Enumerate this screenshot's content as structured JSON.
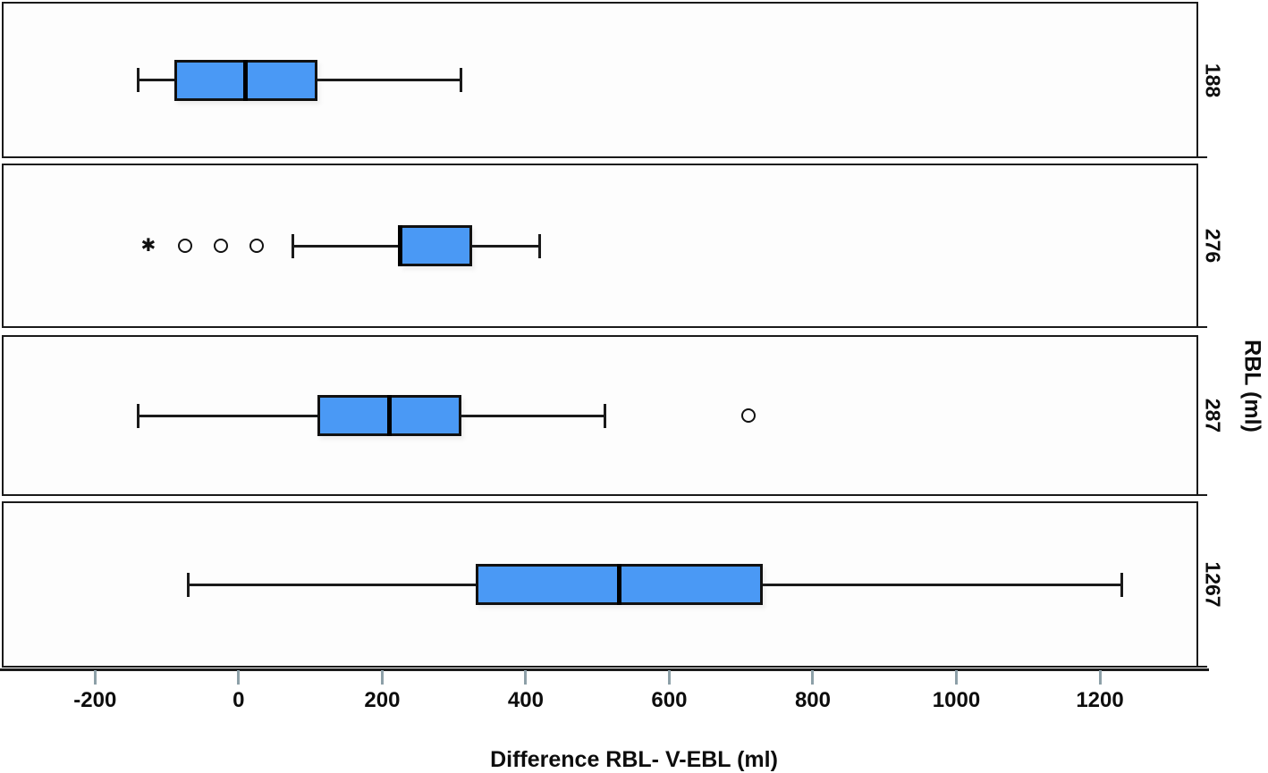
{
  "chart_data": {
    "type": "boxplot",
    "orientation": "horizontal",
    "title": "",
    "xlabel": "Difference RBL- V-EBL (ml)",
    "ylabel": "RBL (ml)",
    "x_ticks": [
      -200,
      0,
      200,
      400,
      600,
      800,
      1000,
      1200
    ],
    "xlim": [
      -330,
      1337
    ],
    "grid": false,
    "legend": false,
    "groups": [
      {
        "label": "188",
        "whisker_low": -140,
        "q1": -90,
        "median": 10,
        "q3": 110,
        "whisker_high": 310,
        "outliers": [],
        "extremes": []
      },
      {
        "label": "276",
        "whisker_low": 75,
        "q1": 225,
        "median": 225,
        "q3": 325,
        "whisker_high": 420,
        "outliers": [
          -75,
          -25,
          25
        ],
        "extremes": [
          -125
        ]
      },
      {
        "label": "287",
        "whisker_low": -140,
        "q1": 110,
        "median": 210,
        "q3": 310,
        "whisker_high": 510,
        "outliers": [
          710
        ],
        "extremes": []
      },
      {
        "label": "1267",
        "whisker_low": -70,
        "q1": 330,
        "median": 530,
        "q3": 730,
        "whisker_high": 1230,
        "outliers": [],
        "extremes": []
      }
    ],
    "markers": {
      "outlier": "open-circle",
      "extreme": "asterisk",
      "extreme_glyph": "✱"
    },
    "colors": {
      "box_fill": "#4A99F5",
      "box_border": "#111111",
      "line": "#1a1a1a",
      "tick": "#8da0a8",
      "text": "#0d0d0d",
      "panel_bg": "#fdfdfd"
    }
  }
}
